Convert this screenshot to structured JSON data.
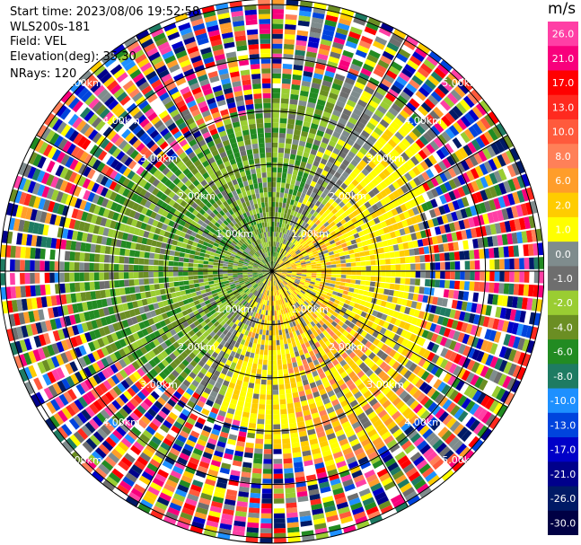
{
  "info": {
    "start_time": "Start time: 2023/08/06 19:52:58",
    "instrument": "WLS200s-181",
    "field": "Field: VEL",
    "elevation": "Elevation(deg): 35.30",
    "nrays": "NRays: 120"
  },
  "chart_data": {
    "type": "heatmap",
    "description_kind": "PPI polar velocity scan",
    "range_rings_km": [
      1.0,
      2.0,
      3.0,
      4.0,
      5.0
    ],
    "ring_labels": [
      "1.00km",
      "2.00km",
      "3.00km",
      "4.00km",
      "5.00km"
    ],
    "max_range_km": 5.1,
    "nrays": 120,
    "colorbar": {
      "unit": "m/s",
      "ticks": [
        "26.0",
        "21.0",
        "17.0",
        "13.0",
        "10.0",
        "8.0",
        "6.0",
        "2.0",
        "1.0",
        "0.0",
        "-1.0",
        "-2.0",
        "-4.0",
        "-6.0",
        "-8.0",
        "-10.0",
        "-13.0",
        "-17.0",
        "-21.0",
        "-26.0",
        "-30.0"
      ],
      "colors": [
        "#ff3fa5",
        "#f8007c",
        "#ff0000",
        "#ff2a1f",
        "#ff5a3c",
        "#ff8058",
        "#ff9d2a",
        "#ffcc00",
        "#ffff00",
        "#7f8c8d",
        "#6e6e6e",
        "#9acd32",
        "#6b8e23",
        "#228b22",
        "#1e7b62",
        "#1e90ff",
        "#0044dd",
        "#0000c8",
        "#00008b",
        "#001a66",
        "#000044"
      ]
    }
  }
}
